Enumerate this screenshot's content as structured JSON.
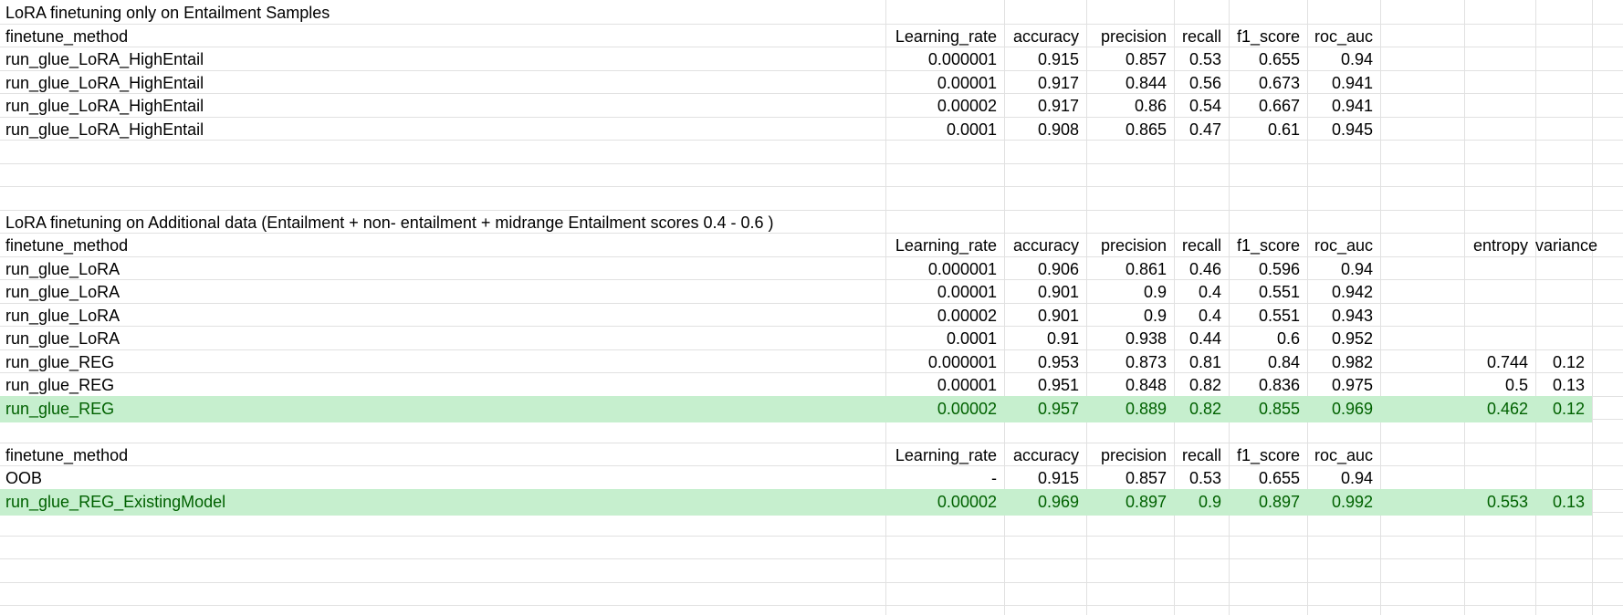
{
  "sheet": {
    "sections": [
      {
        "title": "LoRA finetuning only on Entailment  Samples",
        "header": [
          "finetune_method",
          "Learning_rate",
          "accuracy",
          "precision",
          "recall",
          "f1_score",
          "roc_auc",
          "",
          ""
        ],
        "rows": [
          {
            "cells": [
              "run_glue_LoRA_HighEntail",
              "0.000001",
              "0.915",
              "0.857",
              "0.53",
              "0.655",
              "0.94",
              "",
              ""
            ],
            "highlight": false
          },
          {
            "cells": [
              "run_glue_LoRA_HighEntail",
              "0.00001",
              "0.917",
              "0.844",
              "0.56",
              "0.673",
              "0.941",
              "",
              ""
            ],
            "highlight": false
          },
          {
            "cells": [
              "run_glue_LoRA_HighEntail",
              "0.00002",
              "0.917",
              "0.86",
              "0.54",
              "0.667",
              "0.941",
              "",
              ""
            ],
            "highlight": false
          },
          {
            "cells": [
              "run_glue_LoRA_HighEntail",
              "0.0001",
              "0.908",
              "0.865",
              "0.47",
              "0.61",
              "0.945",
              "",
              ""
            ],
            "highlight": false
          }
        ]
      },
      {
        "title": "LoRA finetuning on Additional data (Entailment + non- entailment + midrange Entailment scores 0.4 - 0.6 )",
        "header": [
          "finetune_method",
          "Learning_rate",
          "accuracy",
          "precision",
          "recall",
          "f1_score",
          "roc_auc",
          "entropy",
          "variance"
        ],
        "rows": [
          {
            "cells": [
              "run_glue_LoRA",
              "0.000001",
              "0.906",
              "0.861",
              "0.46",
              "0.596",
              "0.94",
              "",
              ""
            ],
            "highlight": false
          },
          {
            "cells": [
              "run_glue_LoRA",
              "0.00001",
              "0.901",
              "0.9",
              "0.4",
              "0.551",
              "0.942",
              "",
              ""
            ],
            "highlight": false
          },
          {
            "cells": [
              "run_glue_LoRA",
              "0.00002",
              "0.901",
              "0.9",
              "0.4",
              "0.551",
              "0.943",
              "",
              ""
            ],
            "highlight": false
          },
          {
            "cells": [
              "run_glue_LoRA",
              "0.0001",
              "0.91",
              "0.938",
              "0.44",
              "0.6",
              "0.952",
              "",
              ""
            ],
            "highlight": false
          },
          {
            "cells": [
              "run_glue_REG",
              "0.000001",
              "0.953",
              "0.873",
              "0.81",
              "0.84",
              "0.982",
              "0.744",
              "0.12"
            ],
            "highlight": false
          },
          {
            "cells": [
              "run_glue_REG",
              "0.00001",
              "0.951",
              "0.848",
              "0.82",
              "0.836",
              "0.975",
              "0.5",
              "0.13"
            ],
            "highlight": false
          },
          {
            "cells": [
              "run_glue_REG",
              "0.00002",
              "0.957",
              "0.889",
              "0.82",
              "0.855",
              "0.969",
              "0.462",
              "0.12"
            ],
            "highlight": true
          }
        ]
      },
      {
        "title": "",
        "header": [
          "finetune_method",
          "Learning_rate",
          "accuracy",
          "precision",
          "recall",
          "f1_score",
          "roc_auc",
          "",
          ""
        ],
        "rows": [
          {
            "cells": [
              "OOB",
              "-",
              "0.915",
              "0.857",
              "0.53",
              "0.655",
              "0.94",
              "",
              ""
            ],
            "highlight": false
          },
          {
            "cells": [
              "run_glue_REG_ExistingModel",
              "0.00002",
              "0.969",
              "0.897",
              "0.9",
              "0.897",
              "0.992",
              "0.553",
              "0.13"
            ],
            "highlight": true
          }
        ]
      }
    ],
    "colors": {
      "highlight_fill": "#c6efce",
      "highlight_text": "#006100",
      "grid": "#e1e1e1"
    }
  }
}
